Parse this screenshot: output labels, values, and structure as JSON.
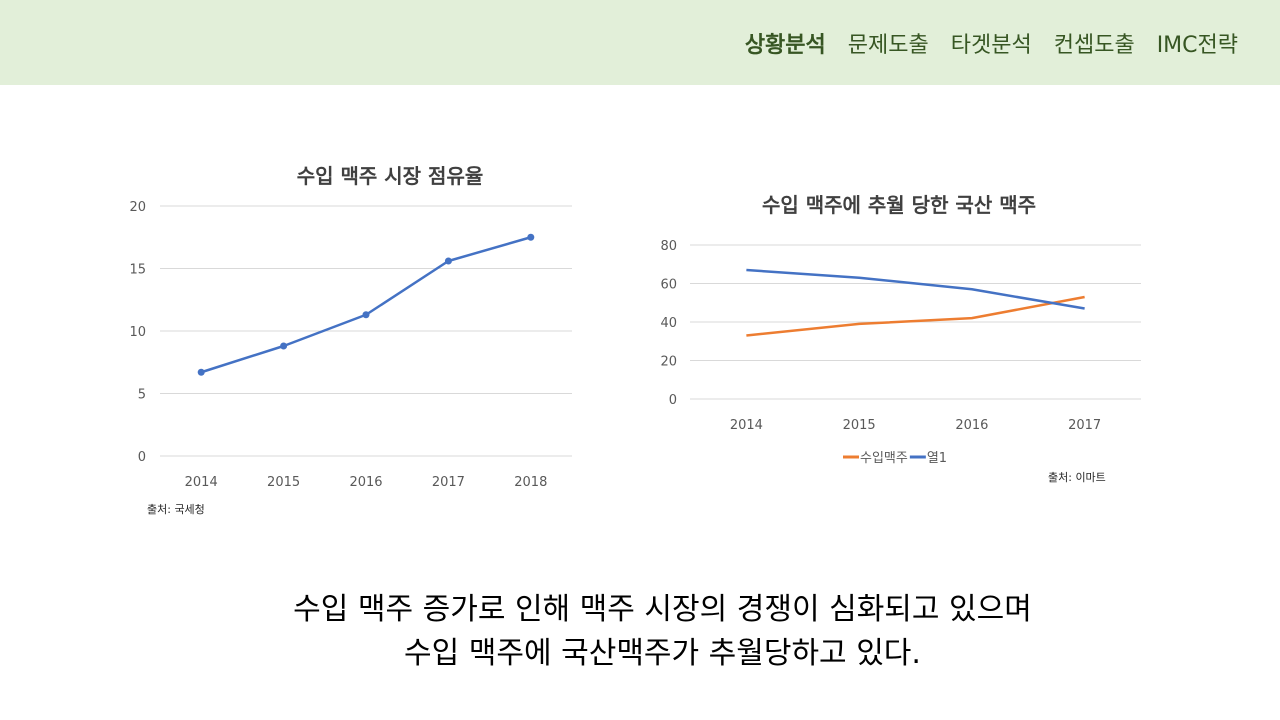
{
  "nav": {
    "items": [
      {
        "label": "상황분석",
        "active": true
      },
      {
        "label": "문제도출",
        "active": false
      },
      {
        "label": "타겟분석",
        "active": false
      },
      {
        "label": "컨셉도출",
        "active": false
      },
      {
        "label": "IMC전략",
        "active": false
      }
    ]
  },
  "colors": {
    "topbar": "#e2efd9",
    "nav_text": "#375623",
    "series_blue": "#4472c4",
    "series_orange": "#ed7d31"
  },
  "chart_data": [
    {
      "type": "line",
      "title": "수입 맥주 시장 점유율",
      "categories": [
        "2014",
        "2015",
        "2016",
        "2017",
        "2018"
      ],
      "series": [
        {
          "name": "수입 맥주 시장 점유율",
          "values": [
            6.7,
            8.8,
            11.3,
            15.6,
            17.5
          ],
          "markers": true
        }
      ],
      "ylim": [
        0,
        20
      ],
      "yticks": [
        0,
        5,
        10,
        15,
        20
      ],
      "grid": true,
      "source": "출처: 국세청"
    },
    {
      "type": "line",
      "title": "수입 맥주에 추월 당한 국산 맥주",
      "categories": [
        "2014",
        "2015",
        "2016",
        "2017"
      ],
      "series": [
        {
          "name": "수입맥주",
          "values": [
            33,
            39,
            42,
            53
          ]
        },
        {
          "name": "열1",
          "values": [
            67,
            63,
            57,
            47
          ]
        }
      ],
      "ylim": [
        0,
        80
      ],
      "yticks": [
        0,
        20,
        40,
        60,
        80
      ],
      "grid": true,
      "legend": "bottom",
      "source": "출처: 이마트"
    }
  ],
  "conclusion": {
    "line1": "수입 맥주 증가로 인해 맥주 시장의 경쟁이 심화되고 있으며",
    "line2": "수입 맥주에 국산맥주가 추월당하고 있다."
  }
}
